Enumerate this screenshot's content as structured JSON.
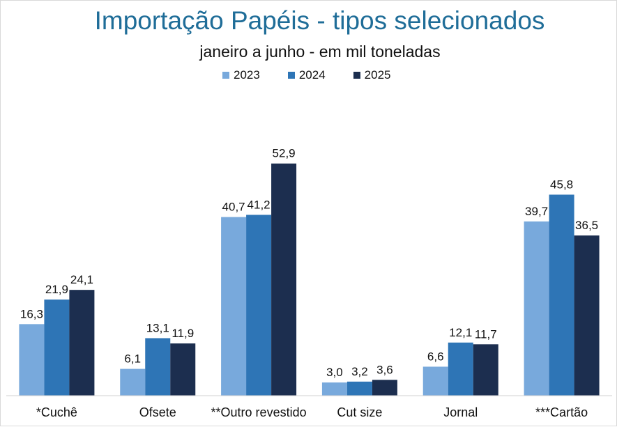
{
  "chart_data": {
    "type": "bar",
    "title": "Importação Papéis - tipos selecionados",
    "subtitle": "janeiro a junho  -  em mil toneladas",
    "categories": [
      "*Cuchê",
      "Ofsete",
      "**Outro revestido",
      "Cut size",
      "Jornal",
      "***Cartão"
    ],
    "series": [
      {
        "name": "2023",
        "color": "#78a9dc",
        "values": [
          16.3,
          6.1,
          40.7,
          3.0,
          6.6,
          39.7
        ],
        "labels": [
          "16,3",
          "6,1",
          "40,7",
          "3,0",
          "6,6",
          "39,7"
        ]
      },
      {
        "name": "2024",
        "color": "#2e75b6",
        "values": [
          21.9,
          13.1,
          41.2,
          3.2,
          12.1,
          45.8
        ],
        "labels": [
          "21,9",
          "13,1",
          "41,2",
          "3,2",
          "12,1",
          "45,8"
        ]
      },
      {
        "name": "2025",
        "color": "#1c2e4f",
        "values": [
          24.1,
          11.9,
          52.9,
          3.6,
          11.7,
          36.5
        ],
        "labels": [
          "24,1",
          "11,9",
          "52,9",
          "3,6",
          "11,7",
          "36,5"
        ]
      }
    ],
    "xlabel": "",
    "ylabel": "",
    "ylim": [
      0,
      60
    ],
    "grid": false,
    "legend": "top-center"
  }
}
